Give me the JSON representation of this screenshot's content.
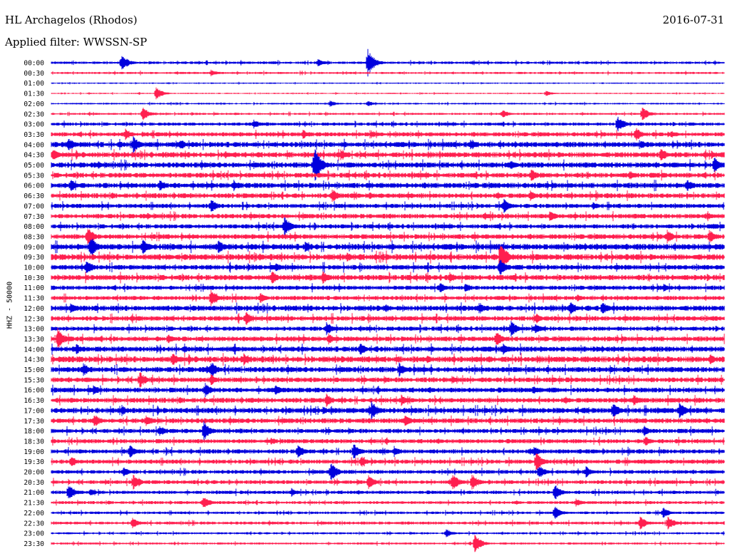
{
  "header": {
    "station": "HL Archagelos (Rhodos)",
    "date": "2016-07-31",
    "filter": "Applied filter: WWSSN-SP"
  },
  "chart_data": {
    "type": "line",
    "ylabel": "HHZ - 50000",
    "colors": [
      "#0000dd",
      "#ff1f4f"
    ],
    "categories": [
      "00:00",
      "00:30",
      "01:00",
      "01:30",
      "02:00",
      "02:30",
      "03:00",
      "03:30",
      "04:00",
      "04:30",
      "05:00",
      "05:30",
      "06:00",
      "06:30",
      "07:00",
      "07:30",
      "08:00",
      "08:30",
      "09:00",
      "09:30",
      "10:00",
      "10:30",
      "11:00",
      "11:30",
      "12:00",
      "12:30",
      "13:00",
      "13:30",
      "14:00",
      "14:30",
      "15:00",
      "15:30",
      "16:00",
      "16:30",
      "17:00",
      "17:30",
      "18:00",
      "18:30",
      "19:00",
      "19:30",
      "20:00",
      "20:30",
      "21:00",
      "21:30",
      "22:00",
      "22:30",
      "23:00",
      "23:30"
    ],
    "noise": [
      1.2,
      1.0,
      0.6,
      0.6,
      0.8,
      1.0,
      1.5,
      2.0,
      2.5,
      2.5,
      2.5,
      2.3,
      2.5,
      2.3,
      2.0,
      2.2,
      2.0,
      2.3,
      2.8,
      2.8,
      2.3,
      2.5,
      2.0,
      2.0,
      2.5,
      2.3,
      2.0,
      2.3,
      2.5,
      2.8,
      2.5,
      2.3,
      2.3,
      2.3,
      2.5,
      2.3,
      2.0,
      2.0,
      2.0,
      2.0,
      1.8,
      1.8,
      1.6,
      1.4,
      1.2,
      1.4,
      1.0,
      1.0
    ],
    "events": [
      [
        [
          171,
          12
        ],
        [
          516,
          20
        ],
        [
          446,
          6
        ]
      ],
      [
        [
          296,
          5
        ]
      ],
      [],
      [
        [
          219,
          9
        ],
        [
          766,
          4
        ]
      ],
      [
        [
          463,
          5
        ],
        [
          516,
          4
        ]
      ],
      [
        [
          200,
          10
        ],
        [
          705,
          6
        ],
        [
          901,
          10
        ]
      ],
      [
        [
          356,
          7
        ],
        [
          866,
          12
        ]
      ],
      [
        [
          176,
          8
        ],
        [
          425,
          7
        ],
        [
          521,
          6
        ],
        [
          892,
          10
        ],
        [
          941,
          6
        ]
      ],
      [
        [
          96,
          10
        ],
        [
          187,
          12
        ],
        [
          253,
          8
        ],
        [
          660,
          8
        ],
        [
          899,
          7
        ]
      ],
      [
        [
          74,
          9
        ],
        [
          316,
          6
        ],
        [
          478,
          8
        ],
        [
          927,
          10
        ],
        [
          998,
          6
        ]
      ],
      [
        [
          441,
          26
        ],
        [
          716,
          8
        ],
        [
          1002,
          12
        ]
      ],
      [
        [
          745,
          10
        ],
        [
          883,
          7
        ]
      ],
      [
        [
          99,
          10
        ],
        [
          224,
          9
        ],
        [
          328,
          8
        ],
        [
          964,
          9
        ]
      ],
      [
        [
          466,
          10
        ],
        [
          744,
          8
        ],
        [
          518,
          6
        ]
      ],
      [
        [
          296,
          10
        ],
        [
          707,
          10
        ],
        [
          832,
          6
        ]
      ],
      [
        [
          680,
          6
        ],
        [
          772,
          8
        ],
        [
          992,
          6
        ]
      ],
      [
        [
          399,
          14
        ],
        [
          1001,
          5
        ]
      ],
      [
        [
          123,
          14
        ],
        [
          936,
          10
        ],
        [
          995,
          10
        ]
      ],
      [
        [
          127,
          16
        ],
        [
          200,
          12
        ],
        [
          306,
          10
        ],
        [
          428,
          8
        ]
      ],
      [
        [
          702,
          24
        ],
        [
          364,
          6
        ],
        [
          487,
          7
        ]
      ],
      [
        [
          121,
          12
        ],
        [
          701,
          14
        ],
        [
          387,
          7
        ]
      ],
      [
        [
          381,
          10
        ],
        [
          453,
          9
        ],
        [
          631,
          8
        ]
      ],
      [
        [
          617,
          8
        ],
        [
          653,
          6
        ],
        [
          931,
          6
        ]
      ],
      [
        [
          296,
          12
        ],
        [
          365,
          8
        ],
        [
          810,
          6
        ]
      ],
      [
        [
          99,
          8
        ],
        [
          541,
          6
        ],
        [
          672,
          8
        ],
        [
          800,
          10
        ],
        [
          845,
          10
        ]
      ],
      [
        [
          345,
          10
        ],
        [
          752,
          8
        ]
      ],
      [
        [
          458,
          10
        ],
        [
          717,
          12
        ],
        [
          751,
          8
        ]
      ],
      [
        [
          81,
          16
        ],
        [
          236,
          8
        ],
        [
          461,
          8
        ],
        [
          696,
          12
        ]
      ],
      [
        [
          107,
          8
        ],
        [
          505,
          10
        ],
        [
          706,
          10
        ]
      ],
      [
        [
          242,
          10
        ],
        [
          342,
          8
        ],
        [
          599,
          6
        ],
        [
          996,
          8
        ]
      ],
      [
        [
          117,
          10
        ],
        [
          296,
          12
        ],
        [
          560,
          10
        ],
        [
          856,
          6
        ]
      ],
      [
        [
          196,
          12
        ],
        [
          296,
          8
        ],
        [
          634,
          6
        ]
      ],
      [
        [
          131,
          8
        ],
        [
          288,
          10
        ],
        [
          386,
          8
        ],
        [
          747,
          6
        ]
      ],
      [
        [
          458,
          10
        ],
        [
          563,
          8
        ],
        [
          889,
          8
        ]
      ],
      [
        [
          171,
          8
        ],
        [
          453,
          6
        ],
        [
          521,
          14
        ],
        [
          860,
          12
        ],
        [
          953,
          12
        ]
      ],
      [
        [
          132,
          10
        ],
        [
          205,
          8
        ],
        [
          568,
          10
        ]
      ],
      [
        [
          224,
          8
        ],
        [
          286,
          14
        ],
        [
          903,
          8
        ]
      ],
      [
        [
          380,
          6
        ],
        [
          905,
          8
        ]
      ],
      [
        [
          182,
          10
        ],
        [
          418,
          10
        ],
        [
          496,
          12
        ],
        [
          553,
          8
        ],
        [
          749,
          8
        ]
      ],
      [
        [
          100,
          8
        ],
        [
          507,
          8
        ],
        [
          752,
          14
        ]
      ],
      [
        [
          173,
          8
        ],
        [
          464,
          14
        ],
        [
          756,
          10
        ],
        [
          822,
          8
        ]
      ],
      [
        [
          187,
          12
        ],
        [
          517,
          10
        ],
        [
          635,
          12
        ],
        [
          662,
          12
        ]
      ],
      [
        [
          96,
          12
        ],
        [
          127,
          6
        ],
        [
          409,
          6
        ],
        [
          778,
          12
        ]
      ],
      [
        [
          285,
          10
        ],
        [
          808,
          6
        ]
      ],
      [
        [
          778,
          10
        ],
        [
          930,
          8
        ]
      ],
      [
        [
          186,
          8
        ],
        [
          898,
          10
        ],
        [
          937,
          10
        ]
      ],
      [
        [
          626,
          6
        ]
      ],
      [
        [
          666,
          14
        ]
      ]
    ]
  }
}
